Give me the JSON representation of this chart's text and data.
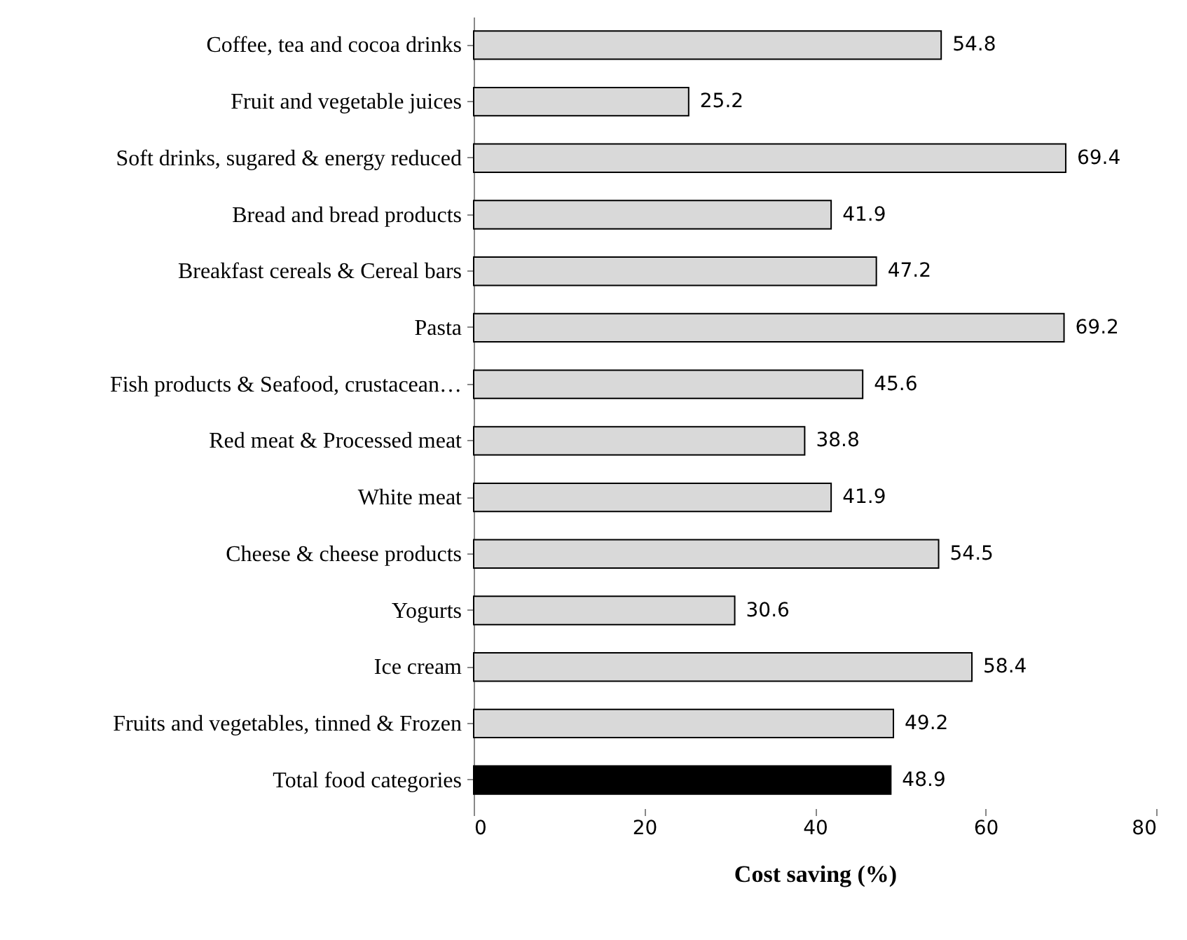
{
  "chart_data": {
    "type": "bar",
    "orientation": "horizontal",
    "xlabel": "Cost saving (%)",
    "categories": [
      "Coffee, tea and cocoa drinks",
      "Fruit and vegetable juices",
      "Soft drinks, sugared & energy reduced",
      "Bread and bread products",
      "Breakfast cereals & Cereal bars",
      "Pasta",
      "Fish products & Seafood, crustacean…",
      "Red meat & Processed meat",
      "White meat",
      "Cheese & cheese products",
      "Yogurts",
      "Ice cream",
      "Fruits and vegetables, tinned & Frozen",
      "Total food categories"
    ],
    "values": [
      54.8,
      25.2,
      69.4,
      41.9,
      47.2,
      69.2,
      45.6,
      38.8,
      41.9,
      54.5,
      30.6,
      58.4,
      49.2,
      48.9
    ],
    "colors": [
      "#d9d9d9",
      "#d9d9d9",
      "#d9d9d9",
      "#d9d9d9",
      "#d9d9d9",
      "#d9d9d9",
      "#d9d9d9",
      "#d9d9d9",
      "#d9d9d9",
      "#d9d9d9",
      "#d9d9d9",
      "#d9d9d9",
      "#d9d9d9",
      "#000000"
    ],
    "xlim": [
      0,
      80
    ],
    "xticks": [
      0,
      20,
      40,
      60,
      80
    ],
    "data_labels": true
  }
}
